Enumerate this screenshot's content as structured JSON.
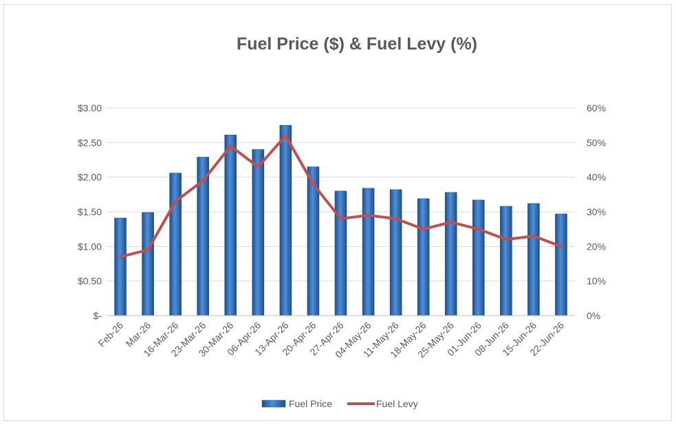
{
  "chart_data": {
    "type": "bar",
    "title": "Fuel Price ($) & Fuel Levy (%)",
    "categories": [
      "Feb-26",
      "Mar-26",
      "16-Mar-26",
      "23-Mar-26",
      "30-Mar-26",
      "06-Apr-26",
      "13-Apr-26",
      "20-Apr-26",
      "27-Apr-26",
      "04-May-26",
      "11-May-26",
      "18-May-26",
      "25-May-26",
      "01-Jun-26",
      "08-Jun-26",
      "15-Jun-26",
      "22-Jun-26"
    ],
    "series": [
      {
        "name": "Fuel Price",
        "type": "bar",
        "axis": "left",
        "color": "#2e6db4",
        "values": [
          1.41,
          1.49,
          2.06,
          2.29,
          2.61,
          2.4,
          2.75,
          2.15,
          1.8,
          1.84,
          1.82,
          1.69,
          1.78,
          1.67,
          1.58,
          1.62,
          1.47
        ]
      },
      {
        "name": "Fuel Levy",
        "type": "line",
        "axis": "right",
        "color": "#c0504d",
        "values": [
          17,
          19,
          33,
          39,
          49,
          43,
          52,
          38,
          28,
          29,
          28,
          25,
          27,
          25,
          22,
          23,
          20
        ]
      }
    ],
    "y_left": {
      "range": [
        0,
        3
      ],
      "ticks": [
        "$-",
        "$0.50",
        "$1.00",
        "$1.50",
        "$2.00",
        "$2.50",
        "$3.00"
      ]
    },
    "y_right": {
      "range": [
        0,
        60
      ],
      "ticks": [
        "0%",
        "10%",
        "20%",
        "30%",
        "40%",
        "50%",
        "60%"
      ]
    },
    "grid": true,
    "legend": "bottom"
  }
}
